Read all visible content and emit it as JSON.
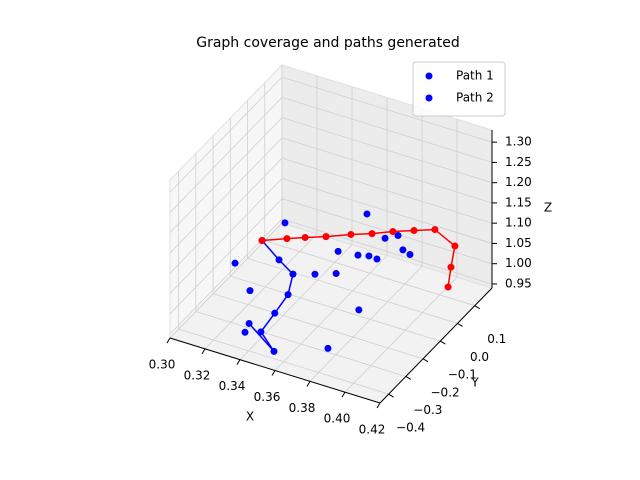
{
  "chart_data": {
    "type": "scatter3d",
    "title": "Graph coverage and paths generated",
    "xlabel": "X",
    "ylabel": "Y",
    "zlabel": "Z",
    "xlim": [
      0.3,
      0.42
    ],
    "ylim": [
      -0.45,
      0.2
    ],
    "zlim": [
      0.94,
      1.33
    ],
    "xticks": [
      {
        "value": 0.3,
        "label": "0.30"
      },
      0.32,
      0.34,
      0.36,
      0.38,
      {
        "value": 0.4,
        "label": "0.40"
      },
      0.42
    ],
    "yticks": [
      {
        "value": -0.4,
        "label": "−0.4"
      },
      {
        "value": -0.3,
        "label": "−0.3"
      },
      {
        "value": -0.2,
        "label": "−0.2"
      },
      {
        "value": -0.1,
        "label": "−0.1"
      },
      {
        "value": 0.0,
        "label": "0.0"
      },
      0.1
    ],
    "zticks": [
      0.95,
      {
        "value": 1.0,
        "label": "1.00"
      },
      1.05,
      {
        "value": 1.1,
        "label": "1.10"
      },
      1.15,
      {
        "value": 1.2,
        "label": "1.20"
      },
      1.25,
      {
        "value": 1.3,
        "label": "1.30"
      }
    ],
    "grid": true,
    "legend": "upper right",
    "points": {
      "color": "#0000ff",
      "x": [
        0.3397,
        0.3222,
        0.3277,
        0.3719,
        0.3774,
        0.3852,
        0.387,
        0.3889,
        0.356,
        0.3631,
        0.3683,
        0.3731,
        0.346,
        0.3582,
        0.3773,
        0.375,
        0.3337
      ],
      "y": [
        -0.186,
        -0.298,
        -0.267,
        -0.037,
        0.012,
        0.008,
        0.018,
        0.04,
        -0.043,
        0.0,
        0.011,
        0.0085,
        -0.076,
        -0.077,
        -0.139,
        -0.295,
        -0.357
      ],
      "z": [
        1.162,
        1.088,
        1.014,
        1.162,
        1.088,
        1.107,
        1.0695,
        1.051,
        1.051,
        1.0325,
        1.0325,
        1.0325,
        0.9955,
        1.014,
        0.977,
        0.947,
        0.9585
      ]
    },
    "series": [
      {
        "name": "Path 1",
        "color": "#0000ff",
        "legend_color": "#0000ff",
        "x": [
          0.3276,
          0.3369,
          0.3427,
          0.3461,
          0.345,
          0.3437,
          0.3546,
          0.3317
        ],
        "y": [
          -0.196,
          -0.192,
          -0.17,
          -0.233,
          -0.299,
          -0.366,
          -0.401,
          -0.313
        ],
        "z": [
          1.1065,
          1.0695,
          1.0325,
          1.014,
          0.9955,
          0.977,
          0.9585,
          0.9585
        ]
      },
      {
        "name": "Path 2",
        "color": "#ff0000",
        "legend_color": "#0000ff",
        "x": [
          0.3276,
          0.3377,
          0.3452,
          0.354,
          0.364,
          0.3729,
          0.3812,
          0.39,
          0.3988,
          0.405,
          0.4027,
          0.4003
        ],
        "y": [
          -0.196,
          -0.154,
          -0.125,
          -0.093,
          -0.05,
          -0.018,
          0.019,
          0.052,
          0.084,
          0.137,
          0.1375,
          0.145
        ],
        "z": [
          1.1065,
          1.1065,
          1.1065,
          1.1065,
          1.1065,
          1.1065,
          1.1065,
          1.1065,
          1.1065,
          1.051,
          0.9955,
          0.94
        ]
      }
    ]
  }
}
